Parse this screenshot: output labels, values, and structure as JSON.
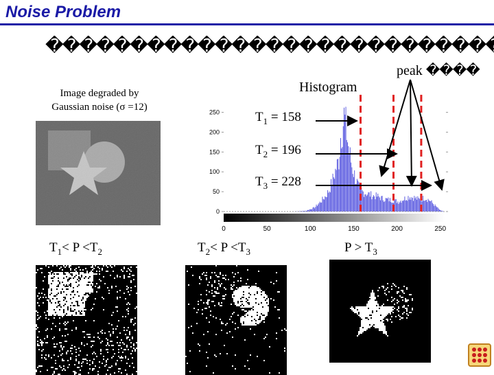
{
  "title": "Noise Problem",
  "subtitle_garbled": "����������������������������������",
  "peak_label": {
    "word": "peak",
    "tail": "����"
  },
  "left_caption": [
    "Image degraded by",
    "Gaussian noise (σ =12)"
  ],
  "histogram": {
    "title": "Histogram"
  },
  "thresholds": [
    {
      "label": "T",
      "sub": "1",
      "value": "= 158"
    },
    {
      "label": "T",
      "sub": "2",
      "value": "= 196"
    },
    {
      "label": "T",
      "sub": "3",
      "value": "= 228"
    }
  ],
  "bottom_labels": [
    {
      "a": "T",
      "a_sub": "1",
      "mid": "< P <",
      "b": "T",
      "b_sub": "2"
    },
    {
      "a": "T",
      "a_sub": "2",
      "mid": "< P <",
      "b": "T",
      "b_sub": "3"
    },
    {
      "a": "P > ",
      "a_sub": "",
      "mid": "",
      "b": "T",
      "b_sub": "3"
    }
  ],
  "chart_data": {
    "type": "bar",
    "x_ticks": [
      0,
      50,
      100,
      150,
      200,
      250
    ],
    "y_ticks": [
      0,
      50,
      100,
      150,
      200,
      250
    ],
    "xlim": [
      0,
      255
    ],
    "ylim": [
      0,
      270
    ],
    "bar_color": "#5a5ae0",
    "threshold_color": "#e02020",
    "thresholds_x": [
      158,
      196,
      228
    ],
    "profile": [
      [
        0,
        0
      ],
      [
        80,
        0
      ],
      [
        95,
        2
      ],
      [
        105,
        10
      ],
      [
        112,
        25
      ],
      [
        118,
        40
      ],
      [
        122,
        55
      ],
      [
        126,
        80
      ],
      [
        130,
        110
      ],
      [
        133,
        130
      ],
      [
        135,
        190
      ],
      [
        137,
        210
      ],
      [
        139,
        240
      ],
      [
        141,
        215
      ],
      [
        143,
        180
      ],
      [
        145,
        150
      ],
      [
        148,
        115
      ],
      [
        152,
        85
      ],
      [
        156,
        60
      ],
      [
        160,
        50
      ],
      [
        166,
        45
      ],
      [
        172,
        40
      ],
      [
        178,
        38
      ],
      [
        184,
        32
      ],
      [
        190,
        30
      ],
      [
        196,
        28
      ],
      [
        202,
        25
      ],
      [
        208,
        32
      ],
      [
        214,
        38
      ],
      [
        220,
        35
      ],
      [
        226,
        30
      ],
      [
        232,
        35
      ],
      [
        238,
        28
      ],
      [
        244,
        15
      ],
      [
        250,
        3
      ],
      [
        255,
        0
      ]
    ]
  }
}
